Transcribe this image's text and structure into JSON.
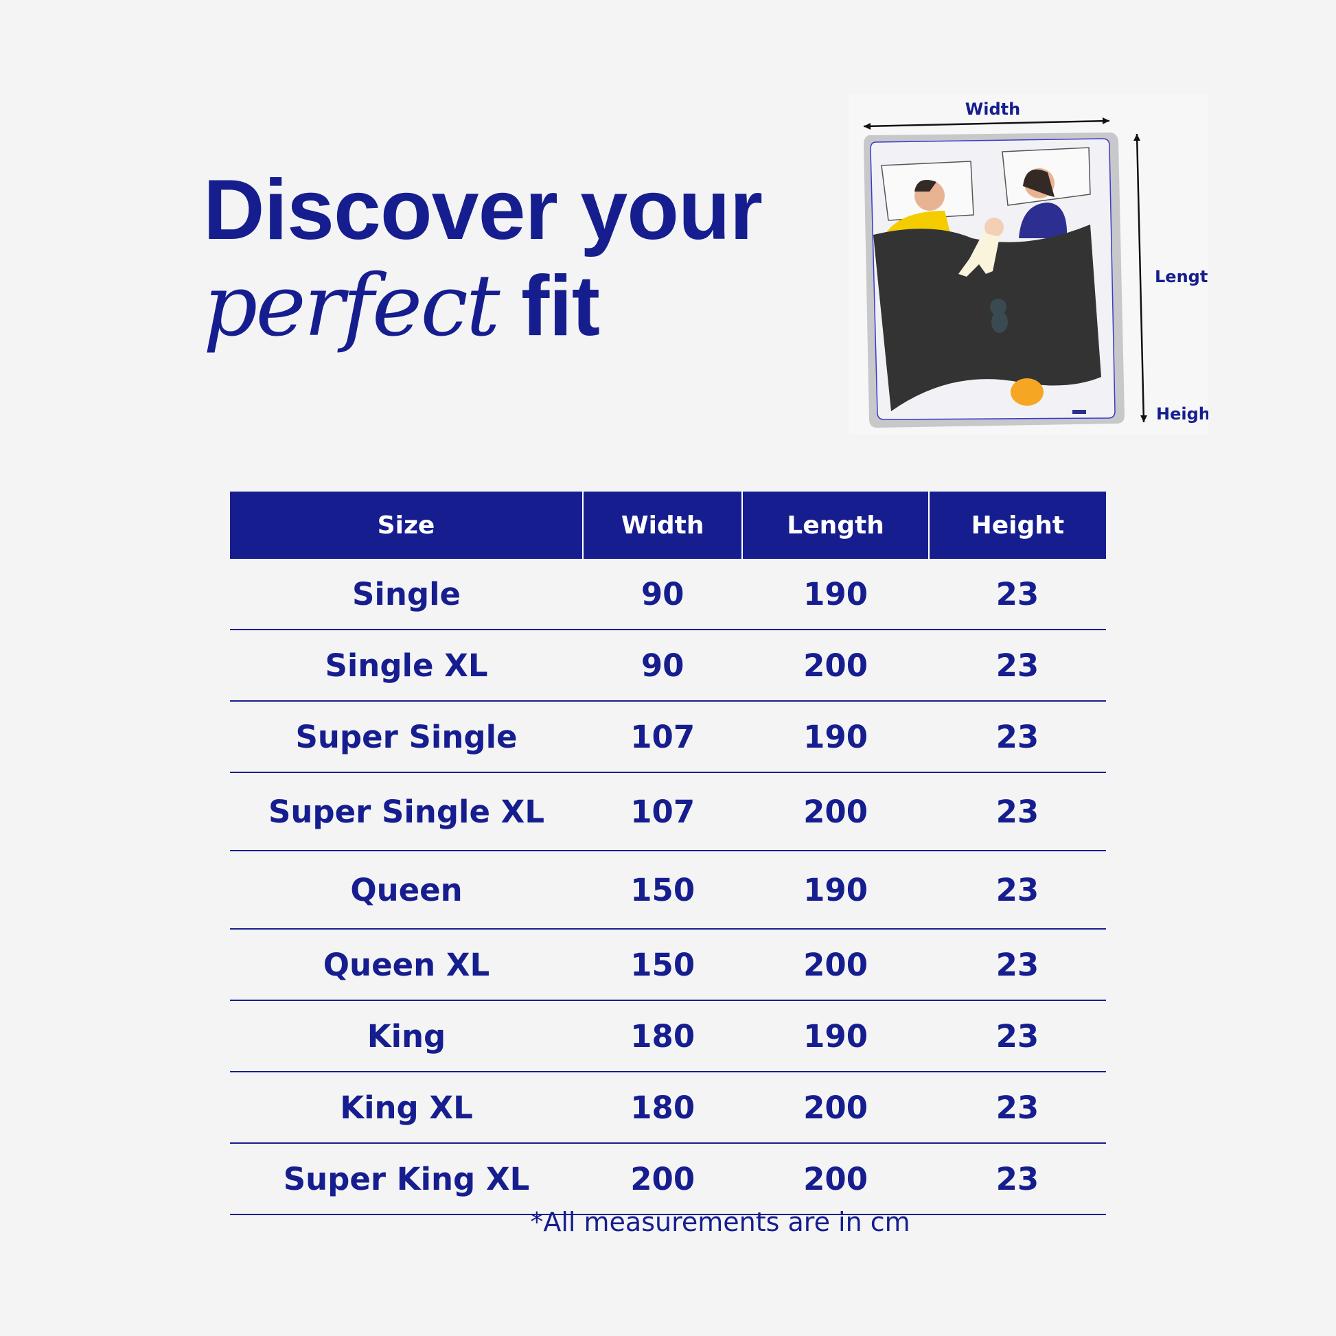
{
  "title": {
    "line1": "Discover your",
    "line2_italic": "perfect",
    "line2_bold": "fit"
  },
  "illustration": {
    "width_label": "Width",
    "length_label": "Length",
    "height_label": "Height"
  },
  "table": {
    "headers": [
      "Size",
      "Width",
      "Length",
      "Height"
    ],
    "rows": [
      [
        "Single",
        "90",
        "190",
        "23"
      ],
      [
        "Single XL",
        "90",
        "200",
        "23"
      ],
      [
        "Super Single",
        "107",
        "190",
        "23"
      ],
      [
        "Super Single XL",
        "107",
        "200",
        "23"
      ],
      [
        "Queen",
        "150",
        "190",
        "23"
      ],
      [
        "Queen XL",
        "150",
        "200",
        "23"
      ],
      [
        "King",
        "180",
        "190",
        "23"
      ],
      [
        "King XL",
        "180",
        "200",
        "23"
      ],
      [
        "Super King XL",
        "200",
        "200",
        "23"
      ]
    ]
  },
  "footnote": "*All measurements are in cm",
  "colors": {
    "brand": "#161e8f",
    "background": "#f4f4f4",
    "blanket": "#333333"
  }
}
